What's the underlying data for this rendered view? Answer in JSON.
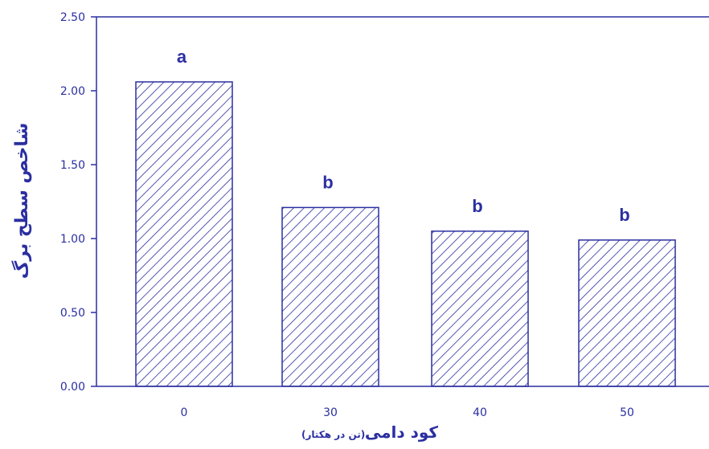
{
  "chart_data": {
    "type": "bar",
    "categories": [
      "0",
      "30",
      "40",
      "50"
    ],
    "values": [
      2.06,
      1.21,
      1.05,
      0.99
    ],
    "group_labels": [
      "a",
      "b",
      "b",
      "b"
    ],
    "ylim": [
      0,
      2.5
    ],
    "y_ticks": [
      "0.00",
      "0.50",
      "1.00",
      "1.50",
      "2.00",
      "2.50"
    ],
    "xlabel": "کود دامی",
    "xlabel_unit": "(تن در هکتار)",
    "ylabel": "شاخص سطح برگ",
    "grid": false,
    "bar_fill": "diagonal-hatch",
    "colors": {
      "axis": "#2b2fa0",
      "bar_stroke": "#2b2fa0",
      "hatch": "#2b2fa0",
      "text": "#2b2fa0"
    }
  }
}
